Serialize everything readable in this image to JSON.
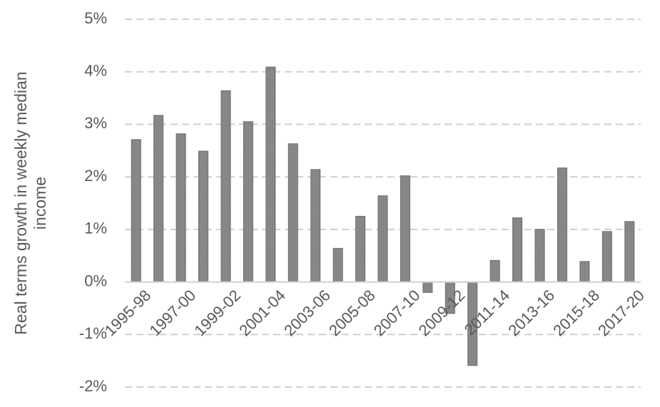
{
  "chart_data": {
    "type": "bar",
    "ylabel": "Real terms growth in weekly median income",
    "categories": [
      "1995-98",
      null,
      "1997-00",
      null,
      "1999-02",
      null,
      "2001-04",
      null,
      "2003-06",
      null,
      "2005-08",
      null,
      "2007-10",
      null,
      "2009-12",
      null,
      "2011-14",
      null,
      "2013-16",
      null,
      "2015-18",
      null,
      "2017-20"
    ],
    "values": [
      2.71,
      3.17,
      2.82,
      2.49,
      3.64,
      3.05,
      4.09,
      2.63,
      2.14,
      0.64,
      1.25,
      1.64,
      2.02,
      -0.2,
      -0.6,
      -1.59,
      0.41,
      1.22,
      1.0,
      2.17,
      0.39,
      0.96,
      1.15
    ],
    "color": "#808080",
    "ylim": [
      -2,
      5
    ],
    "yticks": [
      {
        "value": -2,
        "label": "-2%"
      },
      {
        "value": -1,
        "label": "-1%"
      },
      {
        "value": 0,
        "label": "0%"
      },
      {
        "value": 1,
        "label": "1%"
      },
      {
        "value": 2,
        "label": "2%"
      },
      {
        "value": 3,
        "label": "3%"
      },
      {
        "value": 4,
        "label": "4%"
      },
      {
        "value": 5,
        "label": "5%"
      }
    ],
    "grid": true
  }
}
